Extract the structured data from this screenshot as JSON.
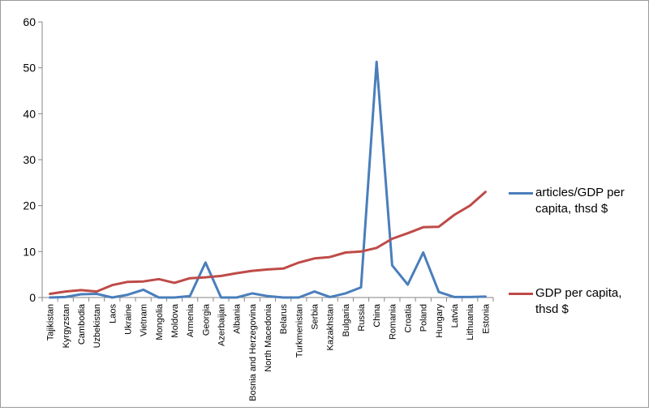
{
  "chart_data": {
    "type": "line",
    "title": "",
    "xlabel": "",
    "ylabel": "",
    "ylim": [
      0,
      60
    ],
    "yticks": [
      0,
      10,
      20,
      30,
      40,
      50,
      60
    ],
    "grid": false,
    "legend_position": "right",
    "categories": [
      "Tajikistan",
      "Kyrgyzstan",
      "Cambodia",
      "Uzbekistan",
      "Laos",
      "Ukraine",
      "Vietnam",
      "Mongolia",
      "Moldova",
      "Armenia",
      "Georgia",
      "Azerbaijan",
      "Albania",
      "Bosnia and Herzegovina",
      "North Macedonia",
      "Belarus",
      "Turkmenistan",
      "Serbia",
      "Kazakhstan",
      "Bulgaria",
      "Russia",
      "China",
      "Romania",
      "Croatia",
      "Poland",
      "Hungary",
      "Latvia",
      "Lithuania",
      "Estonia"
    ],
    "series": [
      {
        "name": "articles/GDP per capita, thsd $",
        "color": "#4a7ebb",
        "values": [
          0.0,
          0.1,
          0.7,
          0.8,
          0.0,
          0.6,
          1.7,
          0.0,
          0.0,
          0.3,
          7.6,
          0.0,
          0.0,
          0.9,
          0.3,
          0.0,
          0.0,
          1.3,
          0.1,
          0.9,
          2.2,
          51.3,
          7.0,
          2.8,
          9.8,
          1.2,
          0.1,
          0.1,
          0.2
        ]
      },
      {
        "name": "GDP per capita, thsd $",
        "color": "#be4b48",
        "values": [
          0.8,
          1.3,
          1.6,
          1.3,
          2.7,
          3.4,
          3.5,
          4.0,
          3.2,
          4.2,
          4.4,
          4.7,
          5.3,
          5.8,
          6.1,
          6.3,
          7.6,
          8.5,
          8.8,
          9.8,
          10.0,
          10.8,
          12.8,
          14.0,
          15.3,
          15.4,
          18.0,
          20.0,
          23.0
        ]
      }
    ]
  }
}
